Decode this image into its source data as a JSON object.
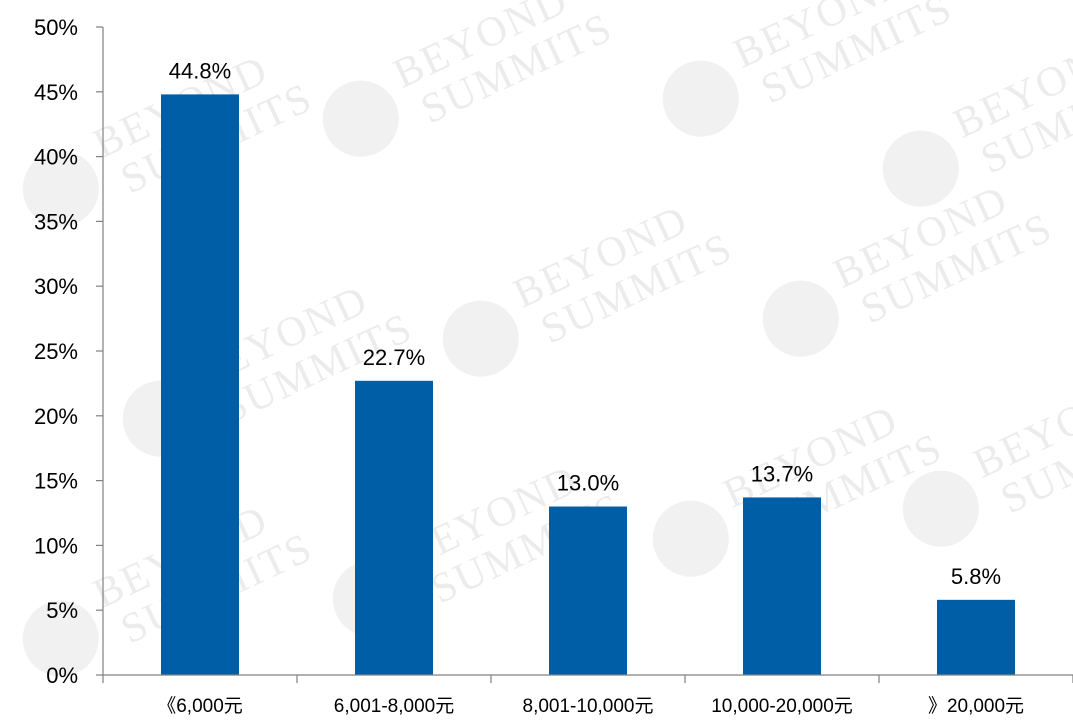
{
  "chart_data": {
    "type": "bar",
    "categories": [
      "《6,000元",
      "6,001-8,000元",
      "8,001-10,000元",
      "10,000-20,000元",
      "》20,000元"
    ],
    "values": [
      44.8,
      22.7,
      13.0,
      13.7,
      5.8
    ],
    "data_labels": [
      "44.8%",
      "22.7%",
      "13.0%",
      "13.7%",
      "5.8%"
    ],
    "ylim": [
      0,
      50
    ],
    "y_ticks": [
      0,
      5,
      10,
      15,
      20,
      25,
      30,
      35,
      40,
      45,
      50
    ],
    "y_tick_labels": [
      "0%",
      "5%",
      "10%",
      "15%",
      "20%",
      "25%",
      "30%",
      "35%",
      "40%",
      "45%",
      "50%"
    ],
    "title": "",
    "xlabel": "",
    "ylabel": "",
    "grid": false,
    "legend": "none",
    "bar_color": "#005ea6"
  },
  "watermark": {
    "line1": "BEYOND",
    "line2": "SUMMITS"
  }
}
